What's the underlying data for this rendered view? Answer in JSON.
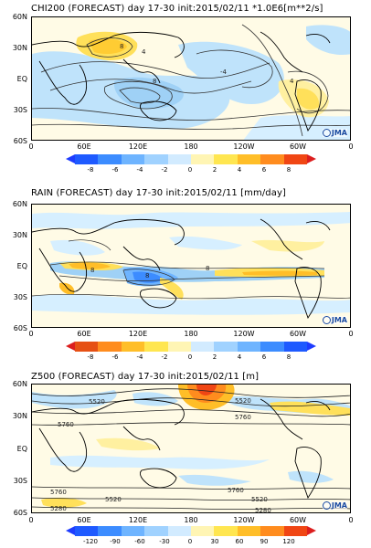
{
  "panels": [
    {
      "title": "CHI200 (FORECAST) day 17-30 init:2015/02/11   *1.0E6[m**2/s]",
      "logo": "JMA",
      "y_ticks": [
        "60N",
        "30N",
        "EQ",
        "30S",
        "60S"
      ],
      "x_ticks": [
        "0",
        "60E",
        "120E",
        "180",
        "120W",
        "60W",
        "0"
      ],
      "contour_labels": [
        "8",
        "4",
        "8",
        "-4",
        "4"
      ],
      "colorbar": {
        "ticks": [
          "-8",
          "-6",
          "-4",
          "-2",
          "0",
          "2",
          "4",
          "6",
          "8"
        ],
        "colors": [
          "#1e5aff",
          "#3c8cff",
          "#6eb4ff",
          "#a0d2ff",
          "#d2ebff",
          "#fff5b4",
          "#ffe650",
          "#ffbe28",
          "#ff8c1e",
          "#f04614"
        ],
        "low_arrow": "#1e3cff",
        "high_arrow": "#dc1e1e"
      }
    },
    {
      "title": "RAIN (FORECAST) day 17-30 init:2015/02/11   [mm/day]",
      "logo": "JMA",
      "y_ticks": [
        "60N",
        "30N",
        "EQ",
        "30S",
        "60S"
      ],
      "x_ticks": [
        "0",
        "60E",
        "120E",
        "180",
        "120W",
        "60W",
        "0"
      ],
      "contour_labels": [
        "8",
        "8",
        "8"
      ],
      "colorbar": {
        "ticks": [
          "-8",
          "-6",
          "-4",
          "-2",
          "0",
          "2",
          "4",
          "6",
          "8"
        ],
        "colors": [
          "#e65014",
          "#ff8c1e",
          "#ffbe28",
          "#ffe650",
          "#fff5b4",
          "#d2ebff",
          "#a0d2ff",
          "#6eb4ff",
          "#3c8cff",
          "#1e5aff"
        ],
        "low_arrow": "#dc1e1e",
        "high_arrow": "#1e3cff"
      }
    },
    {
      "title": "Z500 (FORECAST) day 17-30 init:2015/02/11   [m]",
      "logo": "JMA",
      "y_ticks": [
        "60N",
        "30N",
        "EQ",
        "30S",
        "60S"
      ],
      "x_ticks": [
        "0",
        "60E",
        "120E",
        "180",
        "120W",
        "60W",
        "0"
      ],
      "contour_labels": [
        "5520",
        "5760",
        "5520",
        "5760",
        "5760",
        "5520",
        "5280",
        "5760",
        "5520",
        "5280"
      ],
      "colorbar": {
        "ticks": [
          "-120",
          "-90",
          "-60",
          "-30",
          "0",
          "30",
          "60",
          "90",
          "120"
        ],
        "colors": [
          "#1e5aff",
          "#3c8cff",
          "#6eb4ff",
          "#a0d2ff",
          "#d2ebff",
          "#fff5b4",
          "#ffe650",
          "#ffbe28",
          "#ff8c1e",
          "#f04614"
        ],
        "low_arrow": "#1e3cff",
        "high_arrow": "#dc1e1e"
      }
    }
  ]
}
